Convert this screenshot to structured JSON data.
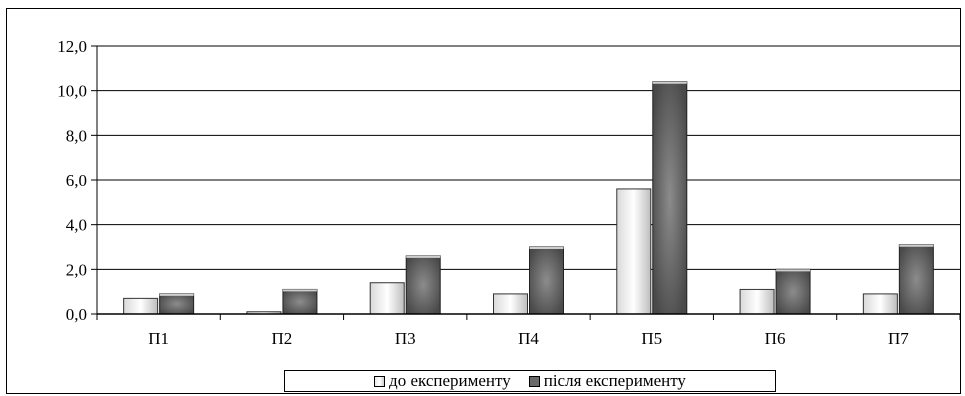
{
  "chart_data": {
    "type": "bar",
    "title": "",
    "xlabel": "",
    "ylabel": "",
    "categories": [
      "П1",
      "П2",
      "П3",
      "П4",
      "П5",
      "П6",
      "П7"
    ],
    "series": [
      {
        "name": "до експерименту",
        "values": [
          0.7,
          0.1,
          1.4,
          0.9,
          5.6,
          1.1,
          0.9
        ],
        "color": "#f2f2f2"
      },
      {
        "name": "після експерименту",
        "values": [
          0.9,
          1.1,
          2.6,
          3.0,
          10.4,
          2.0,
          3.1
        ],
        "color": "#666666"
      }
    ],
    "yticks": [
      "0,0",
      "2,0",
      "4,0",
      "6,0",
      "8,0",
      "10,0",
      "12,0"
    ],
    "ylim": [
      0,
      12
    ],
    "grid": true,
    "legend_position": "bottom"
  }
}
